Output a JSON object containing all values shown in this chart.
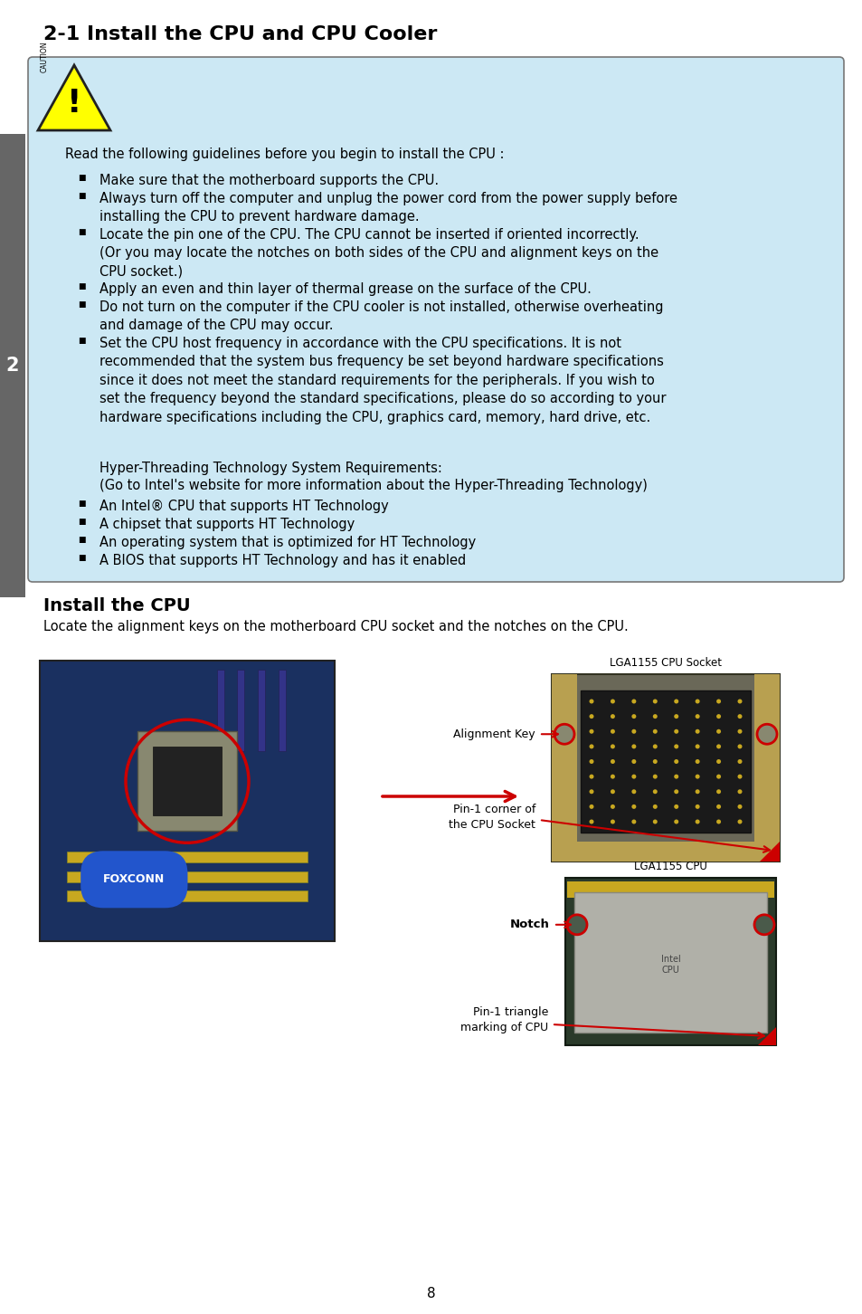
{
  "title": "2-1 Install the CPU and CPU Cooler",
  "page_bg": "#ffffff",
  "box_bg": "#cce8f4",
  "box_border": "#777777",
  "sidebar_bg": "#666666",
  "sidebar_text": "2",
  "intro_text": "Read the following guidelines before you begin to install the CPU :",
  "bullets": [
    "Make sure that the motherboard supports the CPU.",
    "Always turn off the computer and unplug the power cord from the power supply before\ninstalling the CPU to prevent hardware damage.",
    "Locate the pin one of the CPU. The CPU cannot be inserted if oriented incorrectly.\n(Or you may locate the notches on both sides of the CPU and alignment keys on the\nCPU socket.)",
    "Apply an even and thin layer of thermal grease on the surface of the CPU.",
    "Do not turn on the computer if the CPU cooler is not installed, otherwise overheating\nand damage of the CPU may occur.",
    "Set the CPU host frequency in accordance with the CPU specifications. It is not\nrecommended that the system bus frequency be set beyond hardware specifications\nsince it does not meet the standard requirements for the peripherals. If you wish to\nset the frequency beyond the standard specifications, please do so according to your\nhardware specifications including the CPU, graphics card, memory, hard drive, etc."
  ],
  "ht_text1": "Hyper-Threading Technology System Requirements:",
  "ht_text2": "(Go to Intel's website for more information about the Hyper-Threading Technology)",
  "ht_bullets": [
    "An Intel® CPU that supports HT Technology",
    "A chipset that supports HT Technology",
    "An operating system that is optimized for HT Technology",
    "A BIOS that supports HT Technology and has it enabled"
  ],
  "section2_title": "Install the CPU",
  "section2_desc": "Locate the alignment keys on the motherboard CPU socket and the notches on the CPU.",
  "label_socket": "LGA1155 CPU Socket",
  "label_alignment": "Alignment Key",
  "label_pin1_socket": "Pin-1 corner of\nthe CPU Socket",
  "label_cpu": "LGA1155 CPU",
  "label_notch": "Notch",
  "label_pin1_cpu": "Pin-1 triangle\nmarking of CPU",
  "arrow_color": "#cc0000",
  "circle_color": "#cc0000",
  "text_color": "#000000",
  "page_number": "8",
  "title_fontsize": 16,
  "body_fontsize": 10.5,
  "small_fontsize": 9
}
